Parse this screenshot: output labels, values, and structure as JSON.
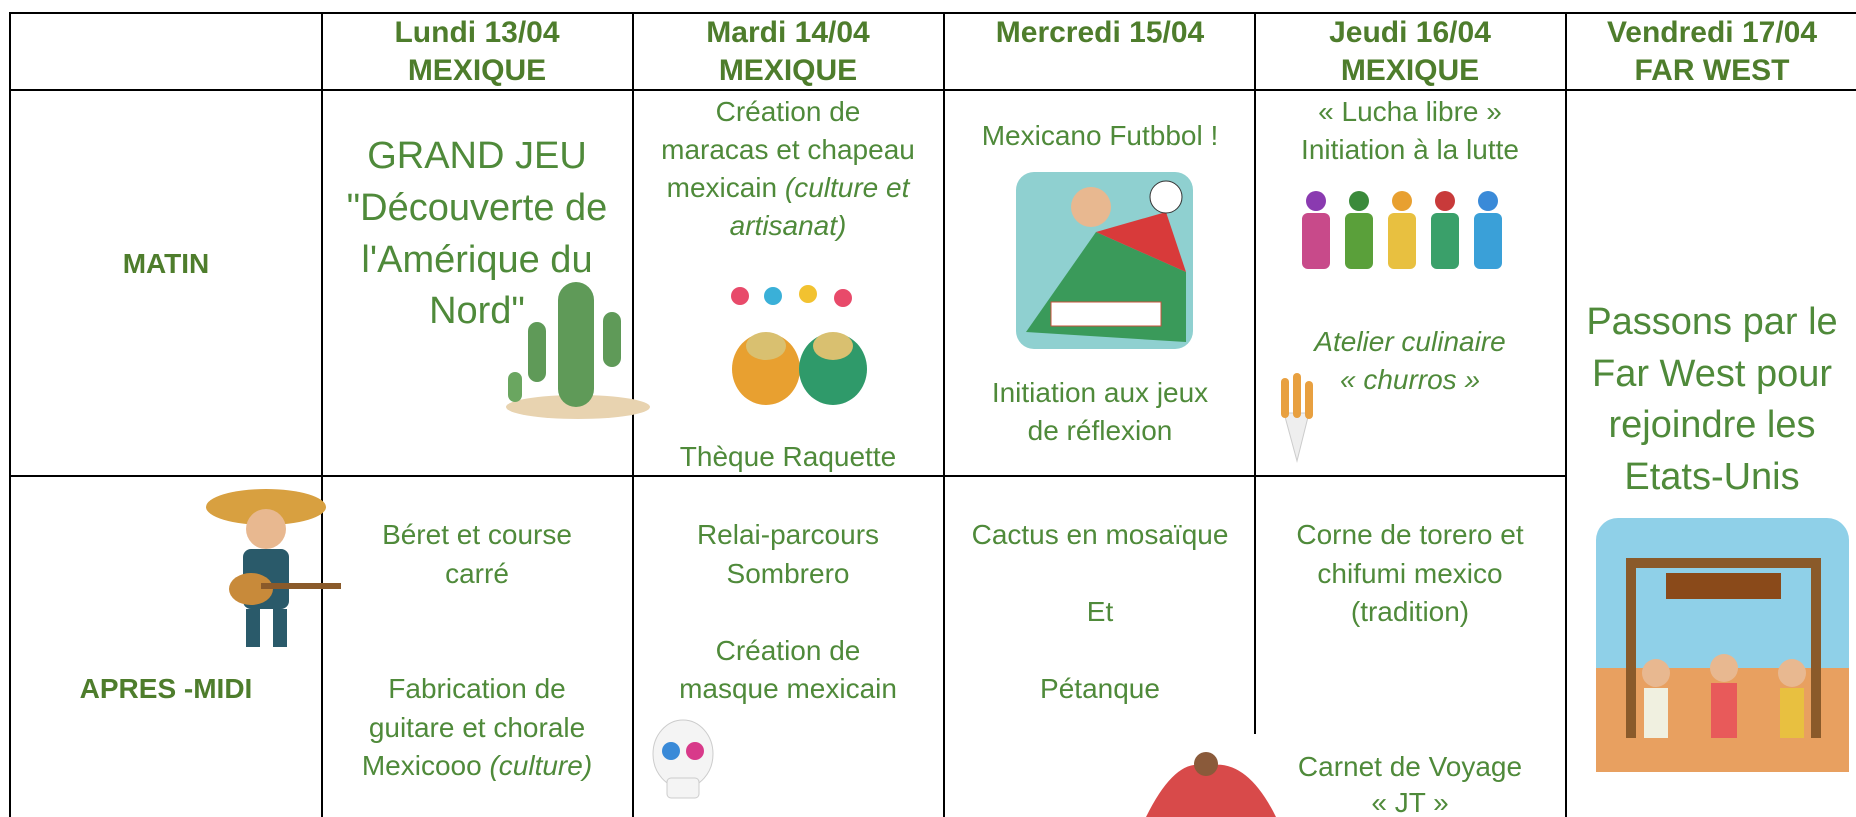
{
  "header": {
    "columns": [
      {
        "day": "Lundi 13/04",
        "theme": "MEXIQUE"
      },
      {
        "day": "Mardi 14/04",
        "theme": "MEXIQUE"
      },
      {
        "day": "Mercredi 15/04"
      },
      {
        "day": "Jeudi 16/04",
        "theme": "MEXIQUE"
      },
      {
        "day": "Vendredi 17/04",
        "theme": "FAR WEST"
      }
    ]
  },
  "rows": [
    {
      "label": "MATIN",
      "cells": [
        {
          "lines": [
            "GRAND JEU",
            "\"Découverte de",
            "l'Amérique du",
            "Nord\""
          ]
        },
        {
          "lines": [
            "Création de",
            "maracas et chapeau",
            "mexicain"
          ],
          "italic": [
            "(culture et",
            "artisanat)"
          ],
          "extra": [
            "Thèque Raquette"
          ]
        },
        {
          "lines": [
            "Mexicano Futbbol !",
            "Initiation aux jeux",
            "de réflexion"
          ]
        },
        {
          "lines": [
            "« Lucha libre »",
            "Initiation à la lutte"
          ],
          "italic": [
            "Atelier culinaire",
            "« churros »"
          ]
        },
        {
          "lines": [
            "Passons par le",
            "Far West pour",
            "rejoindre les",
            "Etats-Unis"
          ]
        }
      ]
    },
    {
      "label": "APRES -MIDI",
      "cells": [
        {
          "lines": [
            "Béret et course",
            "carré",
            "Fabrication de",
            "guitare et chorale",
            "Mexicooo"
          ],
          "italic": [
            "(culture)"
          ]
        },
        {
          "lines": [
            "Relai-parcours",
            "Sombrero",
            "Création de",
            "masque mexicain"
          ]
        },
        {
          "lines": [
            "Cactus en mosaïque",
            "Et",
            "Pétanque"
          ]
        },
        {
          "lines": [
            "Corne de torero et",
            "chifumi mexico",
            "(tradition)",
            "Carnet de Voyage",
            "« JT »"
          ]
        }
      ]
    }
  ]
}
